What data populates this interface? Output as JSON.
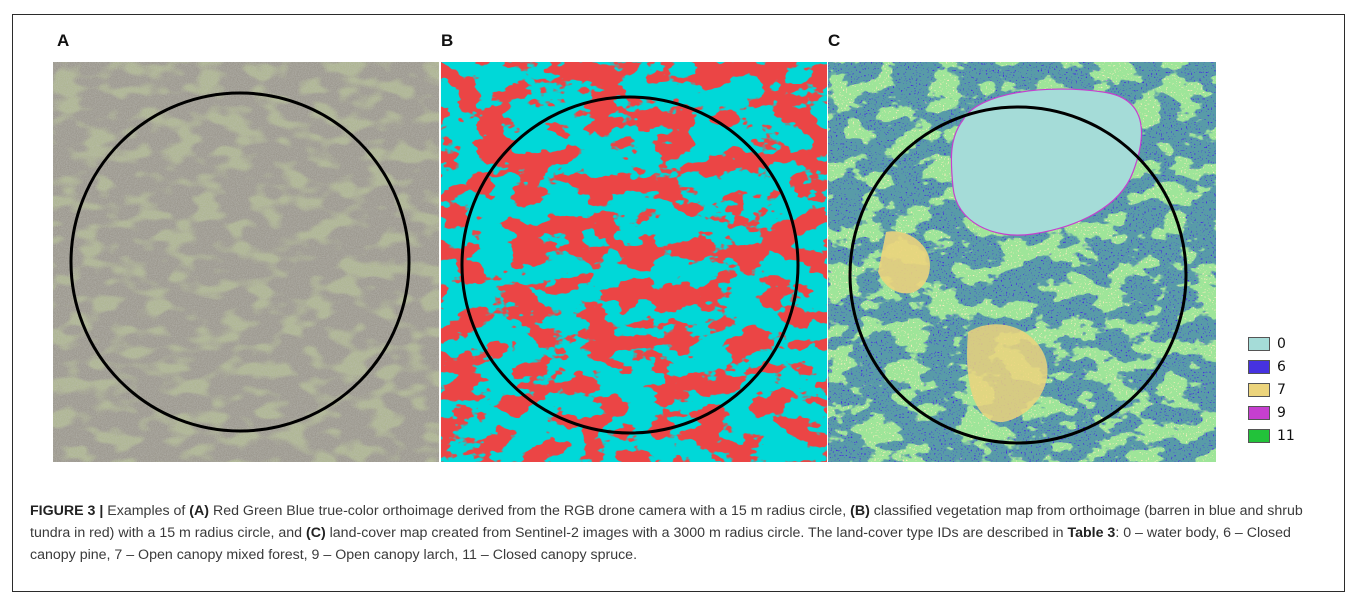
{
  "figure": {
    "panels": [
      {
        "letter": "A",
        "description_key": "rgb-orthoimage"
      },
      {
        "letter": "B",
        "description_key": "classified-vegetation-map"
      },
      {
        "letter": "C",
        "description_key": "land-cover-map"
      }
    ],
    "panel_b_colors": {
      "barren": "#00d8d8",
      "shrub_tundra": "#d40f0f"
    },
    "legend": [
      {
        "label": "0",
        "color": "#a5dcd8"
      },
      {
        "label": "6",
        "color": "#4632e0"
      },
      {
        "label": "7",
        "color": "#ecd47c"
      },
      {
        "label": "9",
        "color": "#c63fcf"
      },
      {
        "label": "11",
        "color": "#22c23a"
      }
    ],
    "caption": {
      "label": "FIGURE 3 |",
      "t1": " Examples of ",
      "a": "(A)",
      "t2": " Red Green Blue true-color orthoimage derived from the RGB drone camera with a 15 m radius circle, ",
      "b": "(B)",
      "t3": " classified vegetation map from orthoimage (barren in blue and shrub tundra in red) with a 15 m radius circle, and ",
      "c": "(C)",
      "t4": " land-cover map created from Sentinel-2 images with a 3000 m radius circle. The land-cover type IDs are described in ",
      "table_ref": "Table 3",
      "t5": ": 0 – water body, 6 – Closed canopy pine, 7 – Open canopy mixed forest, 9 – Open canopy larch, 11 – Closed canopy spruce."
    }
  }
}
